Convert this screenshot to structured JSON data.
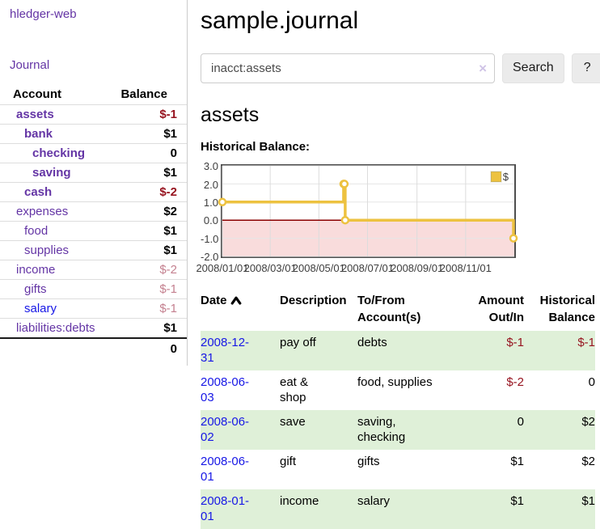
{
  "colors": {
    "link_purple": "#6435a5",
    "link_blue": "#1717e6",
    "neg_strong": "#96121e",
    "neg_soft": "#c4808f",
    "accent_gold": "#edc240",
    "row_green": "#dff0d8",
    "neg_region": "#f9dcdc",
    "zero_line": "#8b0000",
    "grid_border": "#4e4e4e"
  },
  "sidebar": {
    "brand": "hledger-web",
    "journal_link": "Journal",
    "account_header": "Account",
    "balance_header": "Balance",
    "accounts": [
      {
        "name": "assets",
        "balance": "$-1",
        "level": 0,
        "emph": true,
        "balance_style": "neg-strong",
        "link": "purple"
      },
      {
        "name": "bank",
        "balance": "$1",
        "level": 1,
        "emph": true,
        "balance_style": "pos",
        "link": "purple"
      },
      {
        "name": "checking",
        "balance": "0",
        "level": 2,
        "emph": true,
        "balance_style": "pos",
        "link": "purple"
      },
      {
        "name": "saving",
        "balance": "$1",
        "level": 2,
        "emph": true,
        "balance_style": "pos",
        "link": "purple"
      },
      {
        "name": "cash",
        "balance": "$-2",
        "level": 1,
        "emph": true,
        "balance_style": "neg-strong",
        "link": "purple"
      },
      {
        "name": "expenses",
        "balance": "$2",
        "level": 0,
        "emph": false,
        "balance_style": "pos",
        "link": "purple"
      },
      {
        "name": "food",
        "balance": "$1",
        "level": 1,
        "emph": false,
        "balance_style": "pos",
        "link": "purple"
      },
      {
        "name": "supplies",
        "balance": "$1",
        "level": 1,
        "emph": false,
        "balance_style": "pos",
        "link": "purple"
      },
      {
        "name": "income",
        "balance": "$-2",
        "level": 0,
        "emph": false,
        "balance_style": "neg-soft",
        "link": "purple"
      },
      {
        "name": "gifts",
        "balance": "$-1",
        "level": 1,
        "emph": false,
        "balance_style": "neg-soft",
        "link": "purple"
      },
      {
        "name": "salary",
        "balance": "$-1",
        "level": 1,
        "emph": false,
        "balance_style": "neg-soft",
        "link": "blue"
      },
      {
        "name": "liabilities:debts",
        "balance": "$1",
        "level": 0,
        "emph": false,
        "balance_style": "pos",
        "link": "purple"
      }
    ],
    "total": "0"
  },
  "main": {
    "title": "sample.journal",
    "search": {
      "value": "inacct:assets",
      "clear_icon": "×",
      "search_button": "Search",
      "help_button": "?"
    },
    "account_heading": "assets",
    "section_label": "Historical Balance:"
  },
  "register": {
    "headers": {
      "date": "Date",
      "description": "Description",
      "tofrom": "To/From Account(s)",
      "amount": "Amount Out/In",
      "balance": "Historical Balance"
    },
    "rows": [
      {
        "date": "2008-12-31",
        "description": "pay off",
        "accounts": "debts",
        "amount": "$-1",
        "balance": "$-1",
        "amount_neg": true,
        "balance_neg": true,
        "shaded": true
      },
      {
        "date": "2008-06-03",
        "description": "eat & shop",
        "accounts": "food, supplies",
        "amount": "$-2",
        "balance": "0",
        "amount_neg": true,
        "balance_neg": false,
        "shaded": false
      },
      {
        "date": "2008-06-02",
        "description": "save",
        "accounts": "saving, checking",
        "amount": "0",
        "balance": "$2",
        "amount_neg": false,
        "balance_neg": false,
        "shaded": true
      },
      {
        "date": "2008-06-01",
        "description": "gift",
        "accounts": "gifts",
        "amount": "$1",
        "balance": "$2",
        "amount_neg": false,
        "balance_neg": false,
        "shaded": false
      },
      {
        "date": "2008-01-01",
        "description": "income",
        "accounts": "salary",
        "amount": "$1",
        "balance": "$1",
        "amount_neg": false,
        "balance_neg": false,
        "shaded": true
      }
    ]
  },
  "chart_data": {
    "type": "line",
    "style": "step",
    "title": "Historical Balance:",
    "series": [
      {
        "name": "$",
        "points": [
          [
            "2008-01-01",
            1
          ],
          [
            "2008-06-01",
            2
          ],
          [
            "2008-06-02",
            2
          ],
          [
            "2008-06-03",
            0
          ],
          [
            "2008-12-31",
            -1
          ]
        ]
      }
    ],
    "ylim": [
      -2,
      3
    ],
    "yticks": [
      "3.0",
      "2.0",
      "1.0",
      "0.0",
      "-1.0",
      "-2.0"
    ],
    "xticks": [
      "2008/01/01",
      "2008/03/01",
      "2008/05/01",
      "2008/07/01",
      "2008/09/01",
      "2008/11/01"
    ],
    "x_range": [
      "2008-01-01",
      "2009-01-01"
    ],
    "legend": {
      "label": "$",
      "position": "top-right"
    },
    "negative_region_shaded": true,
    "grid": true
  }
}
